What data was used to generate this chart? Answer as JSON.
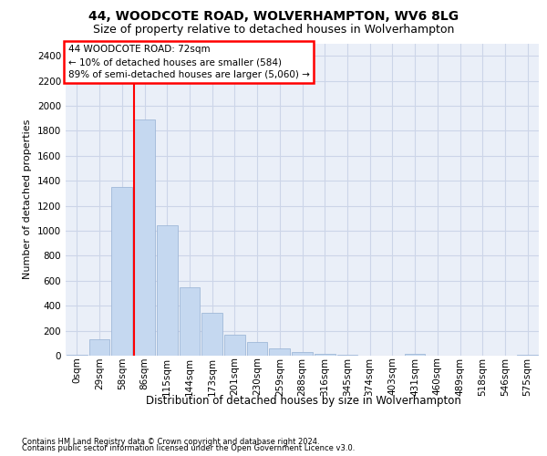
{
  "title_line1": "44, WOODCOTE ROAD, WOLVERHAMPTON, WV6 8LG",
  "title_line2": "Size of property relative to detached houses in Wolverhampton",
  "xlabel": "Distribution of detached houses by size in Wolverhampton",
  "ylabel": "Number of detached properties",
  "footer_line1": "Contains HM Land Registry data © Crown copyright and database right 2024.",
  "footer_line2": "Contains public sector information licensed under the Open Government Licence v3.0.",
  "annotation_line1": "44 WOODCOTE ROAD: 72sqm",
  "annotation_line2": "← 10% of detached houses are smaller (584)",
  "annotation_line3": "89% of semi-detached houses are larger (5,060) →",
  "bar_labels": [
    "0sqm",
    "29sqm",
    "58sqm",
    "86sqm",
    "115sqm",
    "144sqm",
    "173sqm",
    "201sqm",
    "230sqm",
    "259sqm",
    "288sqm",
    "316sqm",
    "345sqm",
    "374sqm",
    "403sqm",
    "431sqm",
    "460sqm",
    "489sqm",
    "518sqm",
    "546sqm",
    "575sqm"
  ],
  "bar_values": [
    10,
    135,
    1350,
    1890,
    1045,
    545,
    340,
    165,
    110,
    58,
    28,
    15,
    5,
    2,
    0,
    18,
    0,
    0,
    0,
    0,
    5
  ],
  "bar_color": "#c5d8f0",
  "bar_edgecolor": "#a0b8d8",
  "vline_x": 2.55,
  "vline_color": "red",
  "ylim_max": 2500,
  "yticks": [
    0,
    200,
    400,
    600,
    800,
    1000,
    1200,
    1400,
    1600,
    1800,
    2000,
    2200,
    2400
  ],
  "grid_color": "#ccd5e8",
  "bg_color": "#eaeff8",
  "title1_fontsize": 10,
  "title2_fontsize": 9,
  "ylabel_fontsize": 8,
  "xlabel_fontsize": 8.5,
  "tick_fontsize": 7.5,
  "ann_fontsize": 7.5,
  "footer_fontsize": 6
}
